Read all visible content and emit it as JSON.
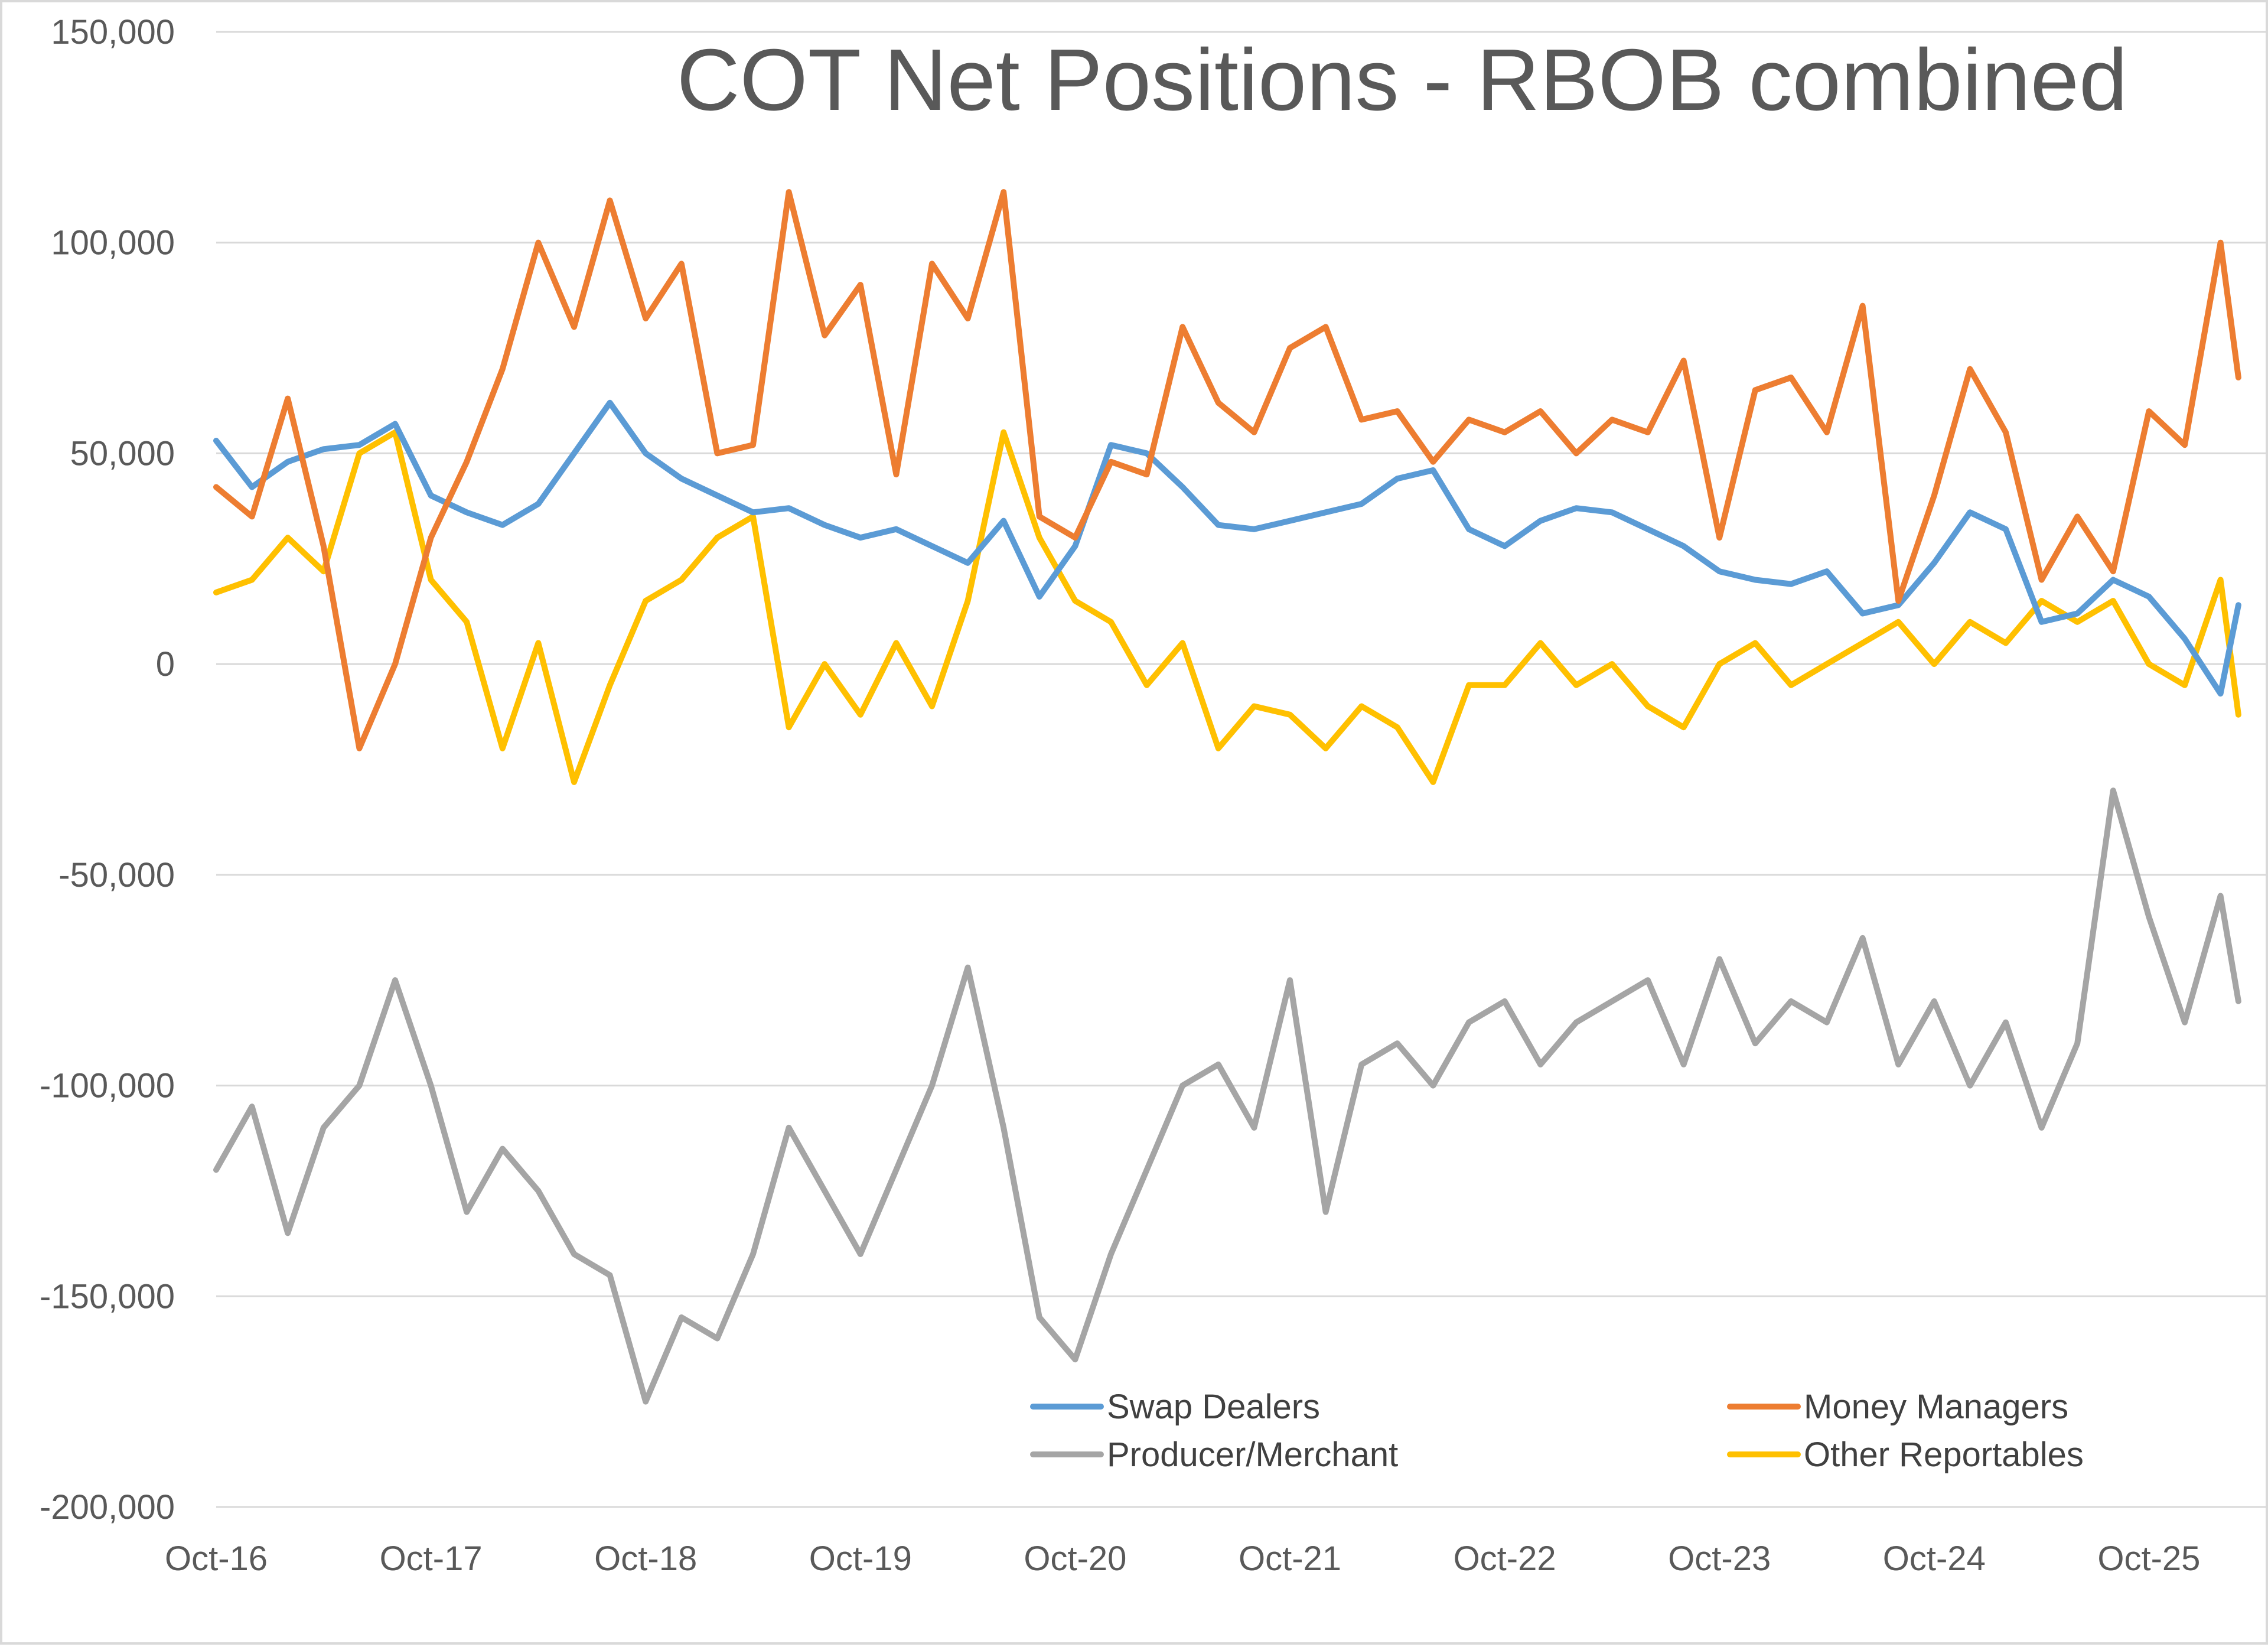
{
  "chart_data": {
    "type": "line",
    "title": "COT Net Positions - RBOB combined",
    "xlabel": "",
    "ylabel": "",
    "ylim": [
      -200000,
      150000
    ],
    "y_ticks": [
      150000,
      100000,
      50000,
      0,
      -50000,
      -100000,
      -150000,
      -200000
    ],
    "y_tick_labels": [
      "150,000",
      "100,000",
      "50,000",
      "0",
      "-50,000",
      "-100,000",
      "-150,000",
      "-200,000"
    ],
    "x_tick_labels": [
      "Oct-16",
      "Oct-17",
      "Oct-18",
      "Oct-19",
      "Oct-20",
      "Oct-21",
      "Oct-22",
      "Oct-23",
      "Oct-24",
      "Oct-25"
    ],
    "x_range": [
      "2016-10",
      "2026-03"
    ],
    "grid": true,
    "legend_position": "bottom-center",
    "x": [
      "2016-10",
      "2016-12",
      "2017-02",
      "2017-04",
      "2017-06",
      "2017-08",
      "2017-10",
      "2017-12",
      "2018-02",
      "2018-04",
      "2018-06",
      "2018-08",
      "2018-10",
      "2018-12",
      "2019-02",
      "2019-04",
      "2019-06",
      "2019-08",
      "2019-10",
      "2019-12",
      "2020-02",
      "2020-04",
      "2020-06",
      "2020-08",
      "2020-10",
      "2020-12",
      "2021-02",
      "2021-04",
      "2021-06",
      "2021-08",
      "2021-10",
      "2021-12",
      "2022-02",
      "2022-04",
      "2022-06",
      "2022-08",
      "2022-10",
      "2022-12",
      "2023-02",
      "2023-04",
      "2023-06",
      "2023-08",
      "2023-10",
      "2023-12",
      "2024-02",
      "2024-04",
      "2024-06",
      "2024-08",
      "2024-10",
      "2024-12",
      "2025-02",
      "2025-04",
      "2025-06",
      "2025-08",
      "2025-10",
      "2025-12",
      "2026-02",
      "2026-03"
    ],
    "series": [
      {
        "name": "Swap Dealers",
        "color": "#5b9bd5",
        "values": [
          53000,
          42000,
          48000,
          51000,
          52000,
          57000,
          40000,
          36000,
          33000,
          38000,
          50000,
          62000,
          50000,
          44000,
          40000,
          36000,
          37000,
          33000,
          30000,
          32000,
          28000,
          24000,
          34000,
          16000,
          28000,
          52000,
          50000,
          42000,
          33000,
          32000,
          34000,
          36000,
          38000,
          44000,
          46000,
          32000,
          28000,
          34000,
          37000,
          36000,
          32000,
          28000,
          22000,
          20000,
          19000,
          22000,
          12000,
          14000,
          24000,
          36000,
          32000,
          10000,
          12000,
          20000,
          16000,
          6000,
          -7000,
          14000
        ]
      },
      {
        "name": "Money Managers",
        "color": "#ed7d31",
        "values": [
          42000,
          35000,
          63000,
          28000,
          -20000,
          0,
          30000,
          48000,
          70000,
          100000,
          80000,
          110000,
          82000,
          95000,
          50000,
          52000,
          112000,
          78000,
          90000,
          45000,
          95000,
          82000,
          112000,
          35000,
          30000,
          48000,
          45000,
          80000,
          62000,
          55000,
          75000,
          80000,
          58000,
          60000,
          48000,
          58000,
          55000,
          60000,
          50000,
          58000,
          55000,
          72000,
          30000,
          65000,
          68000,
          55000,
          85000,
          15000,
          40000,
          70000,
          55000,
          20000,
          35000,
          22000,
          60000,
          52000,
          100000,
          68000
        ]
      },
      {
        "name": "Producer/Merchant",
        "color": "#a5a5a5",
        "values": [
          -120000,
          -105000,
          -135000,
          -110000,
          -100000,
          -75000,
          -100000,
          -130000,
          -115000,
          -125000,
          -140000,
          -145000,
          -175000,
          -155000,
          -160000,
          -140000,
          -110000,
          -125000,
          -140000,
          -120000,
          -100000,
          -72000,
          -110000,
          -155000,
          -165000,
          -140000,
          -120000,
          -100000,
          -95000,
          -110000,
          -75000,
          -130000,
          -95000,
          -90000,
          -100000,
          -85000,
          -80000,
          -95000,
          -85000,
          -80000,
          -75000,
          -95000,
          -70000,
          -90000,
          -80000,
          -85000,
          -65000,
          -95000,
          -80000,
          -100000,
          -85000,
          -110000,
          -90000,
          -30000,
          -60000,
          -85000,
          -55000,
          -80000
        ]
      },
      {
        "name": "Other Reportables",
        "color": "#ffc000",
        "values": [
          17000,
          20000,
          30000,
          22000,
          50000,
          55000,
          20000,
          10000,
          -20000,
          5000,
          -28000,
          -5000,
          15000,
          20000,
          30000,
          35000,
          -15000,
          0,
          -12000,
          5000,
          -10000,
          15000,
          55000,
          30000,
          15000,
          10000,
          -5000,
          5000,
          -20000,
          -10000,
          -12000,
          -20000,
          -10000,
          -15000,
          -28000,
          -5000,
          -5000,
          5000,
          -5000,
          0,
          -10000,
          -15000,
          0,
          5000,
          -5000,
          0,
          5000,
          10000,
          0,
          10000,
          5000,
          15000,
          10000,
          15000,
          0,
          -5000,
          20000,
          -12000
        ]
      }
    ]
  }
}
